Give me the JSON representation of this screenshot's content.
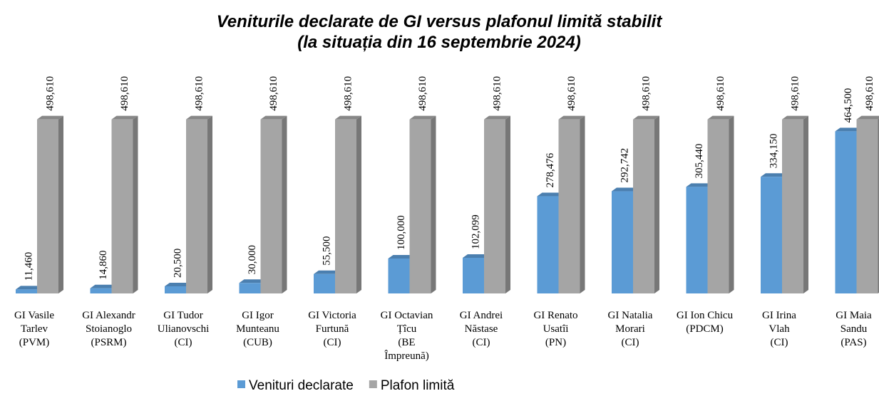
{
  "chart_data": {
    "type": "bar3d",
    "title": [
      "Veniturile declarate de GI versus plafonul limită stabilit",
      "(la situația din 16 septembrie 2024)"
    ],
    "categories": [
      [
        "GI Vasile",
        "Tarlev",
        "(PVM)"
      ],
      [
        "GI Alexandr",
        "Stoianoglo",
        "(PSRM)"
      ],
      [
        "GI Tudor",
        "Ulianovschi",
        "(CI)"
      ],
      [
        "GI Igor",
        "Munteanu",
        "(CUB)"
      ],
      [
        "GI Victoria",
        "Furtună",
        "(CI)"
      ],
      [
        "GI Octavian",
        "Țîcu",
        "(BE",
        "Împreună)"
      ],
      [
        "GI Andrei",
        "Năstase",
        "(CI)"
      ],
      [
        "GI Renato",
        "Usatîi",
        "(PN)"
      ],
      [
        "GI Natalia",
        "Morari",
        "(CI)"
      ],
      [
        "GI Ion Chicu",
        "(PDCM)"
      ],
      [
        "GI Irina",
        "Vlah",
        "(CI)"
      ],
      [
        "GI Maia",
        "Sandu",
        "(PAS)"
      ]
    ],
    "series": [
      {
        "name": "Venituri declarate",
        "color": "#5b9bd5",
        "values": [
          11460,
          14860,
          20500,
          30000,
          55500,
          100000,
          102099,
          278476,
          292742,
          305440,
          334150,
          464500
        ],
        "value_labels": [
          "11,460",
          "14,860",
          "20,500",
          "30,000",
          "55,500",
          "100,000",
          "102,099",
          "278,476",
          "292,742",
          "305,440",
          "334,150",
          "464,500"
        ]
      },
      {
        "name": "Plafon limită",
        "color": "#a5a5a5",
        "values": [
          498610,
          498610,
          498610,
          498610,
          498610,
          498610,
          498610,
          498610,
          498610,
          498610,
          498610,
          498610
        ],
        "value_labels": [
          "498,610",
          "498,610",
          "498,610",
          "498,610",
          "498,610",
          "498,610",
          "498,610",
          "498,610",
          "498,610",
          "498,610",
          "498,610",
          "498,610"
        ]
      }
    ],
    "ylim": [
      0,
      500000
    ],
    "legend": "bottom"
  }
}
